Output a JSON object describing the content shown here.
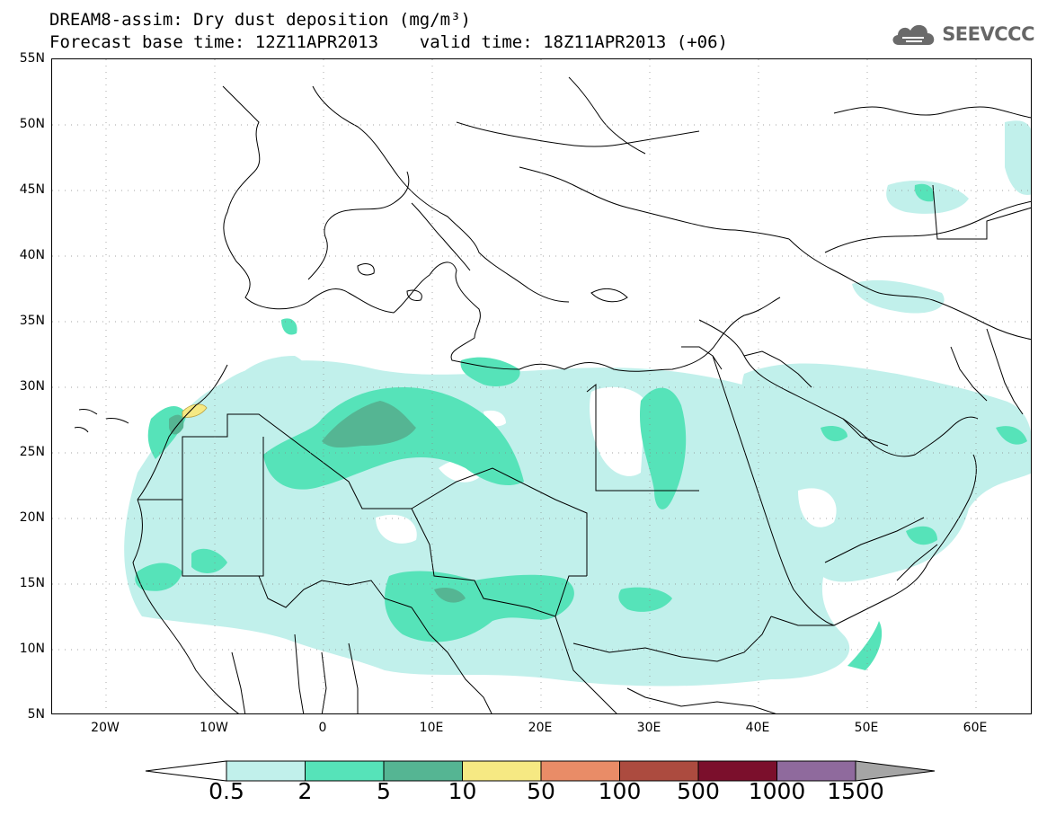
{
  "title": {
    "line1": "DREAM8-assim: Dry dust deposition (mg/m³)",
    "line2": "Forecast base time: 12Z11APR2013    valid time: 18Z11APR2013 (+06)"
  },
  "logo": {
    "text": "SEEVCCC",
    "icon": "cloud-icon"
  },
  "axes": {
    "lat_labels": [
      "55N",
      "50N",
      "45N",
      "40N",
      "35N",
      "30N",
      "25N",
      "20N",
      "15N",
      "10N",
      "5N"
    ],
    "lon_labels": [
      "20W",
      "10W",
      "0",
      "10E",
      "20E",
      "30E",
      "40E",
      "50E",
      "60E"
    ]
  },
  "colorbar": {
    "colors": [
      "#ffffff",
      "#c1f0eb",
      "#56e3b9",
      "#55b593",
      "#f6e983",
      "#e98c67",
      "#ac4b3f",
      "#7b0f2c",
      "#8f6a9d",
      "#a5a5a5"
    ],
    "labels": [
      "0.5",
      "2",
      "5",
      "10",
      "50",
      "100",
      "500",
      "1000",
      "1500"
    ]
  }
}
